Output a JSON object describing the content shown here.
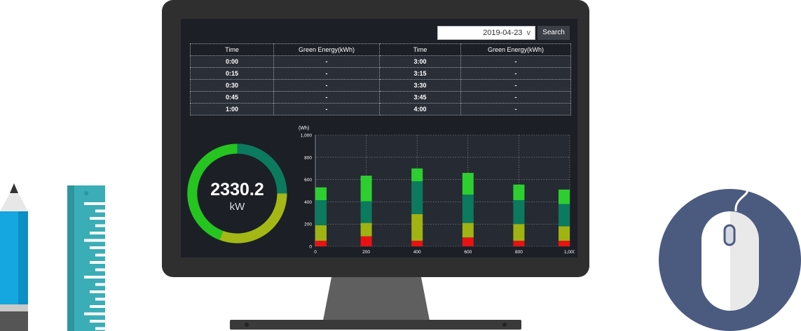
{
  "search": {
    "date_value": "2019-04-23",
    "dropdown_marker": "v",
    "button_label": "Search"
  },
  "table": {
    "headers": [
      "Time",
      "Green Energy(kWh)",
      "Time",
      "Green Energy(kWh)"
    ],
    "rows": [
      [
        "0:00",
        "-",
        "3:00",
        "-"
      ],
      [
        "0:15",
        "-",
        "3:15",
        "-"
      ],
      [
        "0:30",
        "-",
        "3:30",
        "-"
      ],
      [
        "0:45",
        "-",
        "3:45",
        "-"
      ],
      [
        "1:00",
        "-",
        "4:00",
        "-"
      ]
    ]
  },
  "gauge": {
    "value": "2330.2",
    "unit": "kW",
    "colors": {
      "track": "#1f6f56",
      "green": "#26c41f",
      "olive": "#a3b814",
      "teal": "#0c7a5f"
    }
  },
  "chart_data": {
    "type": "bar",
    "ylabel": "(Wh)",
    "ylim": [
      0,
      1000
    ],
    "y_ticks": [
      "1,000",
      "800",
      "600",
      "400",
      "200",
      "0"
    ],
    "x_ticks": [
      "0",
      "200",
      "400",
      "600",
      "800",
      "1,000"
    ],
    "x_tick_values": [
      0,
      200,
      400,
      600,
      800,
      1000
    ],
    "grid": true,
    "categories": [
      0,
      200,
      400,
      600,
      800,
      1000
    ],
    "series": [
      {
        "color": "#e81212",
        "values": [
          50,
          90,
          50,
          80,
          50,
          50
        ]
      },
      {
        "color": "#9fb313",
        "values": [
          140,
          120,
          240,
          130,
          150,
          130
        ]
      },
      {
        "color": "#0c7a5f",
        "values": [
          225,
          195,
          295,
          255,
          215,
          200
        ]
      },
      {
        "color": "#2dcf30",
        "values": [
          115,
          230,
          115,
          195,
          140,
          130
        ]
      }
    ]
  },
  "colors": {
    "monitor_frame": "#2f2f2f",
    "screen_bg": "#1c1f26",
    "pencil_blue": "#14a7e0",
    "ruler_teal": "#3aadb6",
    "mouse_circle": "#4b5b80"
  }
}
